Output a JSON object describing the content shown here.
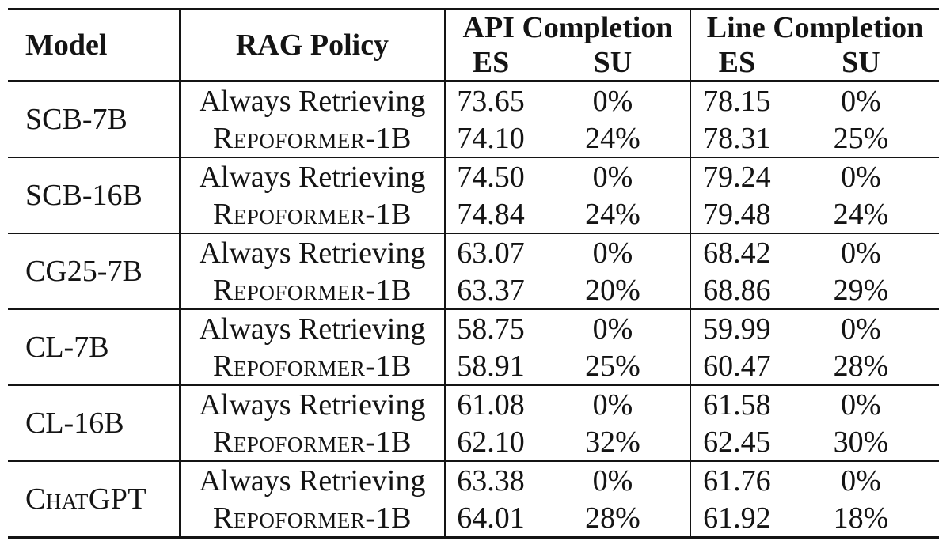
{
  "colors": {
    "background": "#ffffff",
    "text": "#141414",
    "rule": "#141414"
  },
  "table": {
    "headers": {
      "model": "Model",
      "rag_policy": "RAG Policy",
      "api_completion": "API Completion",
      "line_completion": "Line Completion",
      "es": "ES",
      "su": "SU"
    },
    "groups": [
      {
        "model": "SCB-7B",
        "rows": [
          {
            "policy": "Always Retrieving",
            "api_es": "73.65",
            "api_su": "0%",
            "line_es": "78.15",
            "line_su": "0%"
          },
          {
            "policy": "Repoformer-1B",
            "api_es": "74.10",
            "api_su": "24%",
            "line_es": "78.31",
            "line_su": "25%"
          }
        ]
      },
      {
        "model": "SCB-16B",
        "rows": [
          {
            "policy": "Always Retrieving",
            "api_es": "74.50",
            "api_su": "0%",
            "line_es": "79.24",
            "line_su": "0%"
          },
          {
            "policy": "Repoformer-1B",
            "api_es": "74.84",
            "api_su": "24%",
            "line_es": "79.48",
            "line_su": "24%"
          }
        ]
      },
      {
        "model": "CG25-7B",
        "rows": [
          {
            "policy": "Always Retrieving",
            "api_es": "63.07",
            "api_su": "0%",
            "line_es": "68.42",
            "line_su": "0%"
          },
          {
            "policy": "Repoformer-1B",
            "api_es": "63.37",
            "api_su": "20%",
            "line_es": "68.86",
            "line_su": "29%"
          }
        ]
      },
      {
        "model": "CL-7B",
        "rows": [
          {
            "policy": "Always Retrieving",
            "api_es": "58.75",
            "api_su": "0%",
            "line_es": "59.99",
            "line_su": "0%"
          },
          {
            "policy": "Repoformer-1B",
            "api_es": "58.91",
            "api_su": "25%",
            "line_es": "60.47",
            "line_su": "28%"
          }
        ]
      },
      {
        "model": "CL-16B",
        "rows": [
          {
            "policy": "Always Retrieving",
            "api_es": "61.08",
            "api_su": "0%",
            "line_es": "61.58",
            "line_su": "0%"
          },
          {
            "policy": "Repoformer-1B",
            "api_es": "62.10",
            "api_su": "32%",
            "line_es": "62.45",
            "line_su": "30%"
          }
        ]
      },
      {
        "model": "ChatGPT",
        "rows": [
          {
            "policy": "Always Retrieving",
            "api_es": "63.38",
            "api_su": "0%",
            "line_es": "61.76",
            "line_su": "0%"
          },
          {
            "policy": "Repoformer-1B",
            "api_es": "64.01",
            "api_su": "28%",
            "line_es": "61.92",
            "line_su": "18%"
          }
        ]
      }
    ]
  }
}
